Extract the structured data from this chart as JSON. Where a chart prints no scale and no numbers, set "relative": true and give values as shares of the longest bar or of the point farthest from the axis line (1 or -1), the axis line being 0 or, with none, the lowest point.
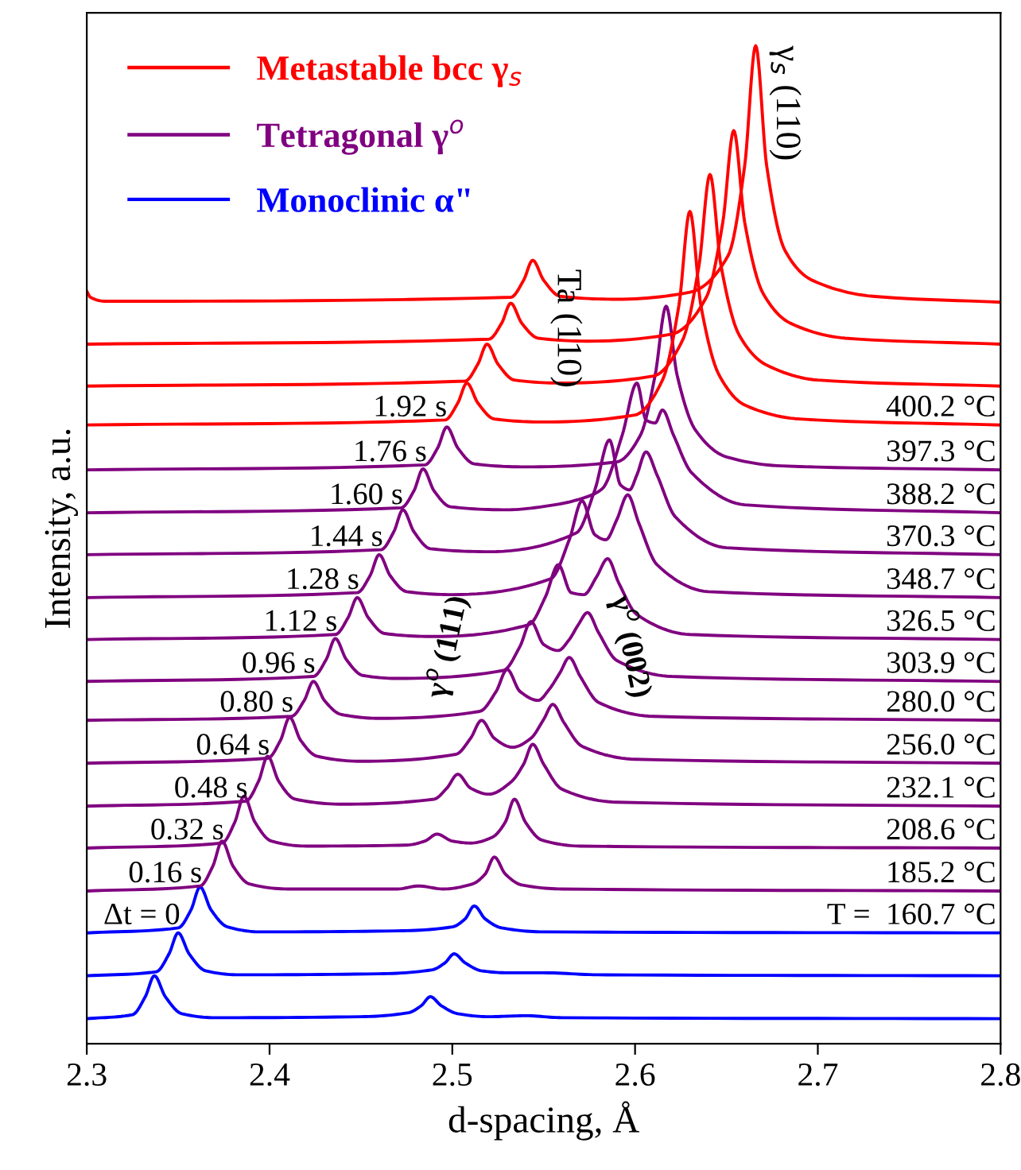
{
  "chart_data": {
    "type": "line",
    "relative": true,
    "xlabel": "d-spacing, Å",
    "ylabel": "Intensity, a.u.",
    "xlim": [
      2.3,
      2.8
    ],
    "xticks": [
      2.3,
      2.4,
      2.5,
      2.6,
      2.7,
      2.8
    ],
    "grid": false,
    "legend": "top left",
    "marker": "none",
    "line_style": "solid",
    "series": [
      {
        "color": "#0000ff",
        "x": [
          2.3,
          2.325,
          2.332,
          2.337,
          2.343,
          2.352,
          2.37,
          2.45,
          2.476,
          2.483,
          2.488,
          2.494,
          2.503,
          2.52,
          2.54,
          2.56,
          2.8
        ],
        "values": [
          0.025,
          0.029,
          0.047,
          0.068,
          0.047,
          0.03,
          0.026,
          0.027,
          0.031,
          0.038,
          0.047,
          0.038,
          0.03,
          0.027,
          0.028,
          0.026,
          0.025
        ]
      },
      {
        "color": "#0000ff",
        "x": [
          2.3,
          2.338,
          2.345,
          2.35,
          2.356,
          2.365,
          2.383,
          2.46,
          2.489,
          2.496,
          2.501,
          2.507,
          2.516,
          2.53,
          2.55,
          2.58,
          2.8
        ],
        "values": [
          0.068,
          0.072,
          0.09,
          0.111,
          0.09,
          0.073,
          0.069,
          0.07,
          0.074,
          0.081,
          0.09,
          0.081,
          0.073,
          0.071,
          0.071,
          0.069,
          0.068
        ]
      },
      {
        "name": "Monoclinic α\"",
        "color": "#0000ff",
        "x": [
          2.3,
          2.35,
          2.357,
          2.362,
          2.368,
          2.377,
          2.395,
          2.47,
          2.5,
          2.507,
          2.512,
          2.518,
          2.527,
          2.55,
          2.8
        ],
        "values": [
          0.111,
          0.116,
          0.134,
          0.157,
          0.134,
          0.117,
          0.112,
          0.113,
          0.117,
          0.125,
          0.138,
          0.125,
          0.116,
          0.112,
          0.111
        ]
      },
      {
        "color": "#800080",
        "x": [
          2.3,
          2.362,
          2.369,
          2.374,
          2.38,
          2.389,
          2.41,
          2.47,
          2.4815,
          2.495,
          2.511,
          2.518,
          2.523,
          2.529,
          2.538,
          2.56,
          2.8
        ],
        "values": [
          0.153,
          0.158,
          0.178,
          0.203,
          0.178,
          0.16,
          0.155,
          0.155,
          0.158,
          0.155,
          0.16,
          0.17,
          0.187,
          0.17,
          0.159,
          0.155,
          0.153
        ]
      },
      {
        "color": "#800080",
        "x": [
          2.3,
          2.374,
          2.381,
          2.386,
          2.392,
          2.401,
          2.42,
          2.475,
          2.485,
          2.4916,
          2.5,
          2.51,
          2.522,
          2.529,
          2.534,
          2.54,
          2.549,
          2.57,
          2.8
        ],
        "values": [
          0.196,
          0.201,
          0.222,
          0.248,
          0.222,
          0.203,
          0.198,
          0.199,
          0.203,
          0.21,
          0.203,
          0.201,
          0.207,
          0.222,
          0.245,
          0.222,
          0.204,
          0.198,
          0.196
        ]
      },
      {
        "color": "#800080",
        "x": [
          2.3,
          2.387,
          2.394,
          2.399,
          2.405,
          2.414,
          2.44,
          2.49,
          2.497,
          2.503,
          2.51,
          2.52,
          2.532,
          2.539,
          2.544,
          2.55,
          2.56,
          2.59,
          2.8
        ],
        "values": [
          0.238,
          0.243,
          0.263,
          0.288,
          0.263,
          0.245,
          0.24,
          0.245,
          0.256,
          0.27,
          0.256,
          0.25,
          0.262,
          0.28,
          0.3,
          0.28,
          0.255,
          0.242,
          0.238
        ]
      },
      {
        "color": "#800080",
        "x": [
          2.3,
          2.399,
          2.406,
          2.411,
          2.417,
          2.426,
          2.45,
          2.502,
          2.51,
          2.516,
          2.523,
          2.533,
          2.543,
          2.55,
          2.555,
          2.561,
          2.571,
          2.6,
          2.8
        ],
        "values": [
          0.281,
          0.286,
          0.304,
          0.327,
          0.304,
          0.288,
          0.283,
          0.29,
          0.306,
          0.324,
          0.306,
          0.297,
          0.306,
          0.325,
          0.34,
          0.322,
          0.298,
          0.285,
          0.281
        ]
      },
      {
        "color": "#800080",
        "x": [
          2.3,
          2.412,
          2.419,
          2.424,
          2.43,
          2.439,
          2.46,
          2.515,
          2.524,
          2.53,
          2.537,
          2.547,
          2.553,
          2.559,
          2.564,
          2.57,
          2.58,
          2.61,
          2.8
        ],
        "values": [
          0.324,
          0.328,
          0.344,
          0.363,
          0.344,
          0.33,
          0.326,
          0.333,
          0.353,
          0.375,
          0.353,
          0.344,
          0.355,
          0.372,
          0.387,
          0.368,
          0.342,
          0.328,
          0.324
        ]
      },
      {
        "color": "#800080",
        "x": [
          2.3,
          2.424,
          2.431,
          2.436,
          2.442,
          2.451,
          2.47,
          2.528,
          2.537,
          2.543,
          2.55,
          2.558,
          2.564,
          2.569,
          2.574,
          2.58,
          2.59,
          2.62,
          2.8
        ],
        "values": [
          0.363,
          0.368,
          0.385,
          0.406,
          0.385,
          0.369,
          0.366,
          0.374,
          0.398,
          0.423,
          0.4,
          0.394,
          0.405,
          0.42,
          0.432,
          0.412,
          0.384,
          0.368,
          0.363
        ]
      },
      {
        "color": "#800080",
        "x": [
          2.3,
          2.436,
          2.443,
          2.448,
          2.454,
          2.463,
          2.49,
          2.542,
          2.551,
          2.558,
          2.565,
          2.572,
          2.579,
          2.585,
          2.591,
          2.601,
          2.63,
          2.8
        ],
        "values": [
          0.405,
          0.41,
          0.427,
          0.447,
          0.427,
          0.411,
          0.408,
          0.42,
          0.448,
          0.48,
          0.452,
          0.45,
          0.468,
          0.486,
          0.462,
          0.43,
          0.41,
          0.405
        ]
      },
      {
        "color": "#800080",
        "x": [
          2.3,
          2.448,
          2.455,
          2.46,
          2.466,
          2.475,
          2.5,
          2.554,
          2.564,
          2.571,
          2.578,
          2.584,
          2.59,
          2.596,
          2.602,
          2.612,
          2.64,
          2.8
        ],
        "values": [
          0.447,
          0.452,
          0.469,
          0.49,
          0.469,
          0.453,
          0.45,
          0.466,
          0.505,
          0.544,
          0.51,
          0.505,
          0.525,
          0.55,
          0.522,
          0.48,
          0.453,
          0.447
        ]
      },
      {
        "color": "#800080",
        "x": [
          2.3,
          2.461,
          2.468,
          2.473,
          2.479,
          2.488,
          2.52,
          2.568,
          2.578,
          2.586,
          2.592,
          2.597,
          2.601,
          2.606,
          2.612,
          2.622,
          2.65,
          2.8
        ],
        "values": [
          0.49,
          0.495,
          0.513,
          0.535,
          0.513,
          0.496,
          0.493,
          0.512,
          0.555,
          0.605,
          0.56,
          0.555,
          0.57,
          0.593,
          0.57,
          0.528,
          0.497,
          0.49
        ]
      },
      {
        "color": "#800080",
        "x": [
          2.3,
          2.472,
          2.479,
          2.484,
          2.49,
          2.499,
          2.53,
          2.556,
          2.572,
          2.582,
          2.593,
          2.601,
          2.606,
          2.611,
          2.615,
          2.621,
          2.631,
          2.66,
          2.8
        ],
        "values": [
          0.532,
          0.537,
          0.554,
          0.576,
          0.554,
          0.538,
          0.535,
          0.54,
          0.547,
          0.556,
          0.61,
          0.662,
          0.625,
          0.622,
          0.635,
          0.61,
          0.572,
          0.54,
          0.532
        ]
      },
      {
        "name": "Tetragonal γ$^{o}$",
        "color": "#800080",
        "x": [
          2.3,
          2.485,
          2.492,
          2.497,
          2.503,
          2.512,
          2.54,
          2.59,
          2.603,
          2.611,
          2.617,
          2.623,
          2.633,
          2.65,
          2.68,
          2.8
        ],
        "values": [
          0.575,
          0.58,
          0.597,
          0.618,
          0.597,
          0.581,
          0.578,
          0.583,
          0.61,
          0.67,
          0.739,
          0.67,
          0.615,
          0.588,
          0.579,
          0.575
        ]
      },
      {
        "color": "#ff0000",
        "x": [
          2.3,
          2.496,
          2.503,
          2.508,
          2.514,
          2.523,
          2.55,
          2.6,
          2.615,
          2.624,
          2.63,
          2.636,
          2.646,
          2.66,
          2.69,
          2.8
        ],
        "values": [
          0.62,
          0.625,
          0.642,
          0.662,
          0.642,
          0.626,
          0.623,
          0.63,
          0.665,
          0.74,
          0.834,
          0.74,
          0.67,
          0.64,
          0.626,
          0.62
        ]
      },
      {
        "color": "#ff0000",
        "x": [
          2.3,
          2.507,
          2.514,
          2.519,
          2.525,
          2.534,
          2.56,
          2.61,
          2.626,
          2.635,
          2.641,
          2.647,
          2.657,
          2.672,
          2.7,
          2.8
        ],
        "values": [
          0.659,
          0.664,
          0.681,
          0.701,
          0.681,
          0.665,
          0.662,
          0.669,
          0.705,
          0.78,
          0.871,
          0.78,
          0.71,
          0.68,
          0.665,
          0.659
        ]
      },
      {
        "color": "#ff0000",
        "x": [
          2.3,
          2.52,
          2.527,
          2.532,
          2.538,
          2.547,
          2.575,
          2.62,
          2.639,
          2.648,
          2.654,
          2.66,
          2.67,
          2.685,
          2.715,
          2.8
        ],
        "values": [
          0.701,
          0.706,
          0.722,
          0.742,
          0.722,
          0.707,
          0.704,
          0.711,
          0.748,
          0.823,
          0.915,
          0.823,
          0.752,
          0.722,
          0.707,
          0.701
        ]
      },
      {
        "name": "Metastable bcc γ$_{s}$",
        "color": "#ff0000",
        "x": [
          2.3,
          2.302,
          2.31,
          2.532,
          2.539,
          2.544,
          2.55,
          2.559,
          2.59,
          2.63,
          2.651,
          2.66,
          2.666,
          2.672,
          2.682,
          2.697,
          2.73,
          2.8
        ],
        "values": [
          0.754,
          0.748,
          0.744,
          0.748,
          0.765,
          0.785,
          0.765,
          0.749,
          0.746,
          0.753,
          0.79,
          0.88,
          1.0,
          0.88,
          0.795,
          0.765,
          0.749,
          0.743
        ]
      }
    ],
    "annotations": [
      "Δt = 0",
      "0.16 s",
      "0.32 s",
      "0.48 s",
      "0.64 s",
      "0.80 s",
      "0.96 s",
      "1.12 s",
      "1.28 s",
      "1.44 s",
      "1.60 s",
      "1.76 s",
      "1.92 s",
      "T =  160.7 °C",
      "185.2 °C",
      "208.6 °C",
      "232.1 °C",
      "256.0 °C",
      "280.0 °C",
      "303.9 °C",
      "326.5 °C",
      "348.7 °C",
      "370.3 °C",
      "388.2 °C",
      "397.3 °C",
      "400.2 °C",
      {
        "text": "Ta (110)",
        "x": 2.544,
        "y": 0.785
      },
      {
        "text": "γ$_{s}$ (110)",
        "x": 2.666,
        "y": 1.0
      },
      "γ$^{o}$ (111)",
      "γ$^{o}$ (002)"
    ]
  }
}
